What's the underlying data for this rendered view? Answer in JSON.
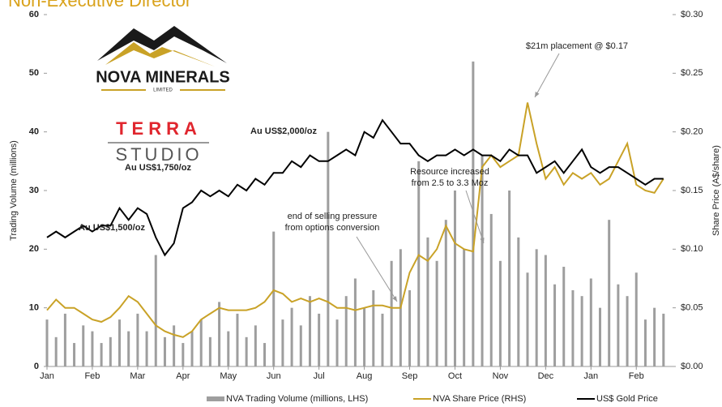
{
  "chart_data": {
    "type": "bar-line",
    "title": "Non-Executive Director",
    "logo_texts": {
      "company": "NOVA MINERALS",
      "company_sub": "LIMITED",
      "studio_top": "TERRA",
      "studio_bottom": "STUDIO"
    },
    "ylabel": "Trading Volume (millions)",
    "y2label": "Share Price (A$/share)",
    "x": [
      0,
      0.2,
      0.4,
      0.6,
      0.8,
      1.0,
      1.2,
      1.4,
      1.6,
      1.8,
      2.0,
      2.2,
      2.4,
      2.6,
      2.8,
      3.0,
      3.2,
      3.4,
      3.6,
      3.8,
      4.0,
      4.2,
      4.4,
      4.6,
      4.8,
      5.0,
      5.2,
      5.4,
      5.6,
      5.8,
      6.0,
      6.2,
      6.4,
      6.6,
      6.8,
      7.0,
      7.2,
      7.4,
      7.6,
      7.8,
      8.0,
      8.2,
      8.4,
      8.6,
      8.8,
      9.0,
      9.2,
      9.4,
      9.6,
      9.8,
      10.0,
      10.2,
      10.4,
      10.6,
      10.8,
      11.0,
      11.2,
      11.4,
      11.6,
      11.8,
      12.0,
      12.2,
      12.4,
      12.6,
      12.8,
      13.0,
      13.2,
      13.4,
      13.6
    ],
    "xlim": [
      0,
      13.8
    ],
    "xticks": [
      {
        "value": 0,
        "label": "Jan"
      },
      {
        "value": 1,
        "label": "Feb"
      },
      {
        "value": 2,
        "label": "Mar"
      },
      {
        "value": 3,
        "label": "Apr"
      },
      {
        "value": 4,
        "label": "May"
      },
      {
        "value": 5,
        "label": "Jun"
      },
      {
        "value": 6,
        "label": "Jul"
      },
      {
        "value": 7,
        "label": "Aug"
      },
      {
        "value": 8,
        "label": "Sep"
      },
      {
        "value": 9,
        "label": "Oct"
      },
      {
        "value": 10,
        "label": "Nov"
      },
      {
        "value": 11,
        "label": "Dec"
      },
      {
        "value": 12,
        "label": "Jan"
      },
      {
        "value": 13,
        "label": "Feb"
      }
    ],
    "ylim": [
      0,
      60
    ],
    "yticks": [
      0,
      10,
      20,
      30,
      40,
      50,
      60
    ],
    "y2lim": [
      0,
      0.3
    ],
    "y2ticks": [
      {
        "value": 0,
        "label": "$0.00"
      },
      {
        "value": 0.05,
        "label": "$0.05"
      },
      {
        "value": 0.1,
        "label": "$0.10"
      },
      {
        "value": 0.15,
        "label": "$0.15"
      },
      {
        "value": 0.2,
        "label": "$0.20"
      },
      {
        "value": 0.25,
        "label": "$0.25"
      },
      {
        "value": 0.3,
        "label": "$0.30"
      }
    ],
    "series": [
      {
        "name": "NVA Trading Volume (millions, LHS)",
        "kind": "bar",
        "axis": "y",
        "color": "#9e9e9e",
        "values": [
          8,
          5,
          9,
          4,
          7,
          6,
          4,
          5,
          8,
          6,
          9,
          6,
          19,
          5,
          7,
          4,
          6,
          8,
          5,
          11,
          6,
          9,
          5,
          7,
          4,
          23,
          8,
          10,
          7,
          12,
          9,
          40,
          8,
          12,
          15,
          10,
          13,
          9,
          18,
          20,
          13,
          35,
          22,
          18,
          25,
          30,
          20,
          52,
          36,
          26,
          18,
          30,
          22,
          16,
          20,
          19,
          14,
          17,
          13,
          12,
          15,
          10,
          25,
          14,
          12,
          16,
          8,
          10,
          9
        ]
      },
      {
        "name": "NVA Share Price (RHS)",
        "kind": "line",
        "axis": "y2",
        "color": "#c9a227",
        "values": [
          0.048,
          0.057,
          0.05,
          0.05,
          0.045,
          0.04,
          0.038,
          0.042,
          0.05,
          0.06,
          0.055,
          0.045,
          0.035,
          0.03,
          0.027,
          0.025,
          0.03,
          0.04,
          0.045,
          0.05,
          0.048,
          0.048,
          0.048,
          0.05,
          0.055,
          0.065,
          0.062,
          0.055,
          0.058,
          0.055,
          0.058,
          0.055,
          0.05,
          0.05,
          0.048,
          0.05,
          0.052,
          0.052,
          0.05,
          0.05,
          0.08,
          0.095,
          0.09,
          0.1,
          0.12,
          0.105,
          0.1,
          0.098,
          0.17,
          0.18,
          0.17,
          0.175,
          0.18,
          0.225,
          0.19,
          0.16,
          0.17,
          0.155,
          0.165,
          0.16,
          0.165,
          0.155,
          0.16,
          0.175,
          0.19,
          0.155,
          0.15,
          0.148,
          0.16
        ]
      },
      {
        "name": "US$ Gold Price",
        "kind": "line",
        "axis": "y",
        "color": "#000000",
        "values": [
          22,
          23,
          22,
          23,
          24,
          23,
          24,
          24,
          27,
          25,
          27,
          26,
          22,
          19,
          21,
          27,
          28,
          30,
          29,
          30,
          29,
          31,
          30,
          32,
          31,
          33,
          33,
          35,
          34,
          36,
          35,
          35,
          36,
          37,
          36,
          40,
          39,
          42,
          40,
          38,
          38,
          36,
          35,
          36,
          36,
          37,
          36,
          37,
          36,
          36,
          35,
          37,
          36,
          36,
          33,
          34,
          35,
          33,
          35,
          37,
          34,
          33,
          34,
          34,
          33,
          32,
          31,
          32,
          32
        ]
      }
    ],
    "annotations": [
      {
        "lines": [
          "$21m placement @ $0.17"
        ]
      },
      {
        "lines": [
          "Resource increased",
          "from 2.5 to 3.3 Moz"
        ]
      },
      {
        "lines": [
          "end of selling pressure",
          "from options conversion"
        ]
      },
      {
        "lines": [
          "Au US$2,000/oz"
        ]
      },
      {
        "lines": [
          "Au US$1,750/oz"
        ]
      },
      {
        "lines": [
          "Au US$1,500/oz"
        ]
      }
    ]
  }
}
